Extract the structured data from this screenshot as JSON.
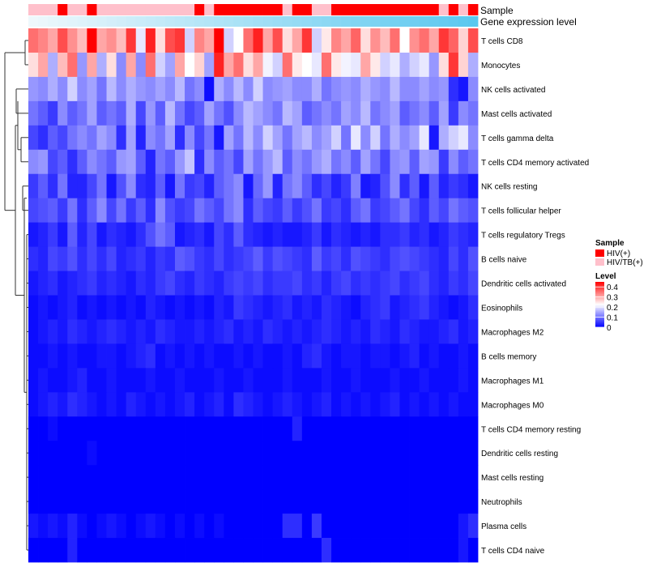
{
  "chart_data": {
    "type": "heatmap",
    "title": "",
    "annotation_tracks": [
      "Sample",
      "Gene expression level"
    ],
    "rows": [
      "T cells CD8",
      "Monocytes",
      "NK cells activated",
      "Mast cells activated",
      "T cells gamma delta",
      "T cells CD4 memory activated",
      "NK cells resting",
      "T cells follicular helper",
      "T cells regulatory  Tregs",
      "B cells naive",
      "Dendritic cells activated",
      "Eosinophils",
      "Macrophages M2",
      "B cells memory",
      "Macrophages M1",
      "Macrophages M0",
      "T cells CD4 memory resting",
      "Dendritic cells resting",
      "Mast cells resting",
      "Neutrophils",
      "Plasma cells",
      "T cells CD4 naive"
    ],
    "column_count": 46,
    "sample_groups": [
      "HIV/TB(+)",
      "HIV/TB(+)",
      "HIV/TB(+)",
      "HIV(+)",
      "HIV/TB(+)",
      "HIV/TB(+)",
      "HIV(+)",
      "HIV/TB(+)",
      "HIV/TB(+)",
      "HIV/TB(+)",
      "HIV/TB(+)",
      "HIV/TB(+)",
      "HIV/TB(+)",
      "HIV/TB(+)",
      "HIV/TB(+)",
      "HIV/TB(+)",
      "HIV/TB(+)",
      "HIV(+)",
      "HIV/TB(+)",
      "HIV(+)",
      "HIV(+)",
      "HIV(+)",
      "HIV(+)",
      "HIV(+)",
      "HIV(+)",
      "HIV(+)",
      "HIV/TB(+)",
      "HIV(+)",
      "HIV(+)",
      "HIV/TB(+)",
      "HIV/TB(+)",
      "HIV(+)",
      "HIV(+)",
      "HIV(+)",
      "HIV(+)",
      "HIV(+)",
      "HIV(+)",
      "HIV(+)",
      "HIV(+)",
      "HIV(+)",
      "HIV(+)",
      "HIV(+)",
      "HIV/TB(+)",
      "HIV(+)",
      "HIV/TB(+)",
      "HIV(+)"
    ],
    "expression_gradient": [
      "#eef8fc",
      "#5bc8ef"
    ],
    "values": [
      [
        0.35,
        0.33,
        0.3,
        0.38,
        0.32,
        0.28,
        0.45,
        0.3,
        0.32,
        0.28,
        0.4,
        0.2,
        0.42,
        0.25,
        0.38,
        0.4,
        0.18,
        0.33,
        0.3,
        0.45,
        0.18,
        0.22,
        0.35,
        0.42,
        0.3,
        0.38,
        0.25,
        0.3,
        0.4,
        0.18,
        0.24,
        0.33,
        0.3,
        0.36,
        0.25,
        0.32,
        0.28,
        0.35,
        0.22,
        0.32,
        0.35,
        0.3,
        0.4,
        0.36,
        0.26,
        0.38
      ],
      [
        0.25,
        0.3,
        0.15,
        0.28,
        0.35,
        0.13,
        0.3,
        0.15,
        0.25,
        0.12,
        0.3,
        0.12,
        0.35,
        0.18,
        0.14,
        0.3,
        0.22,
        0.26,
        0.14,
        0.42,
        0.3,
        0.35,
        0.25,
        0.3,
        0.21,
        0.18,
        0.35,
        0.24,
        0.22,
        0.2,
        0.35,
        0.24,
        0.21,
        0.2,
        0.3,
        0.24,
        0.18,
        0.2,
        0.15,
        0.18,
        0.2,
        0.13,
        0.25,
        0.4,
        0.26,
        0.15
      ],
      [
        0.13,
        0.12,
        0.15,
        0.12,
        0.18,
        0.12,
        0.14,
        0.1,
        0.16,
        0.12,
        0.15,
        0.13,
        0.12,
        0.14,
        0.12,
        0.16,
        0.1,
        0.12,
        0.01,
        0.15,
        0.12,
        0.16,
        0.12,
        0.18,
        0.12,
        0.13,
        0.14,
        0.12,
        0.12,
        0.15,
        0.1,
        0.12,
        0.13,
        0.12,
        0.15,
        0.13,
        0.12,
        0.16,
        0.12,
        0.12,
        0.14,
        0.12,
        0.13,
        0.04,
        0.02,
        0.12
      ],
      [
        0.1,
        0.08,
        0.05,
        0.12,
        0.08,
        0.1,
        0.14,
        0.08,
        0.1,
        0.08,
        0.15,
        0.06,
        0.13,
        0.08,
        0.16,
        0.1,
        0.06,
        0.08,
        0.14,
        0.1,
        0.07,
        0.12,
        0.16,
        0.14,
        0.12,
        0.1,
        0.16,
        0.14,
        0.08,
        0.1,
        0.12,
        0.1,
        0.14,
        0.12,
        0.16,
        0.1,
        0.12,
        0.14,
        0.08,
        0.1,
        0.12,
        0.08,
        0.14,
        0.05,
        0.12,
        0.1
      ],
      [
        0.06,
        0.04,
        0.08,
        0.06,
        0.1,
        0.12,
        0.1,
        0.14,
        0.12,
        0.04,
        0.14,
        0.03,
        0.12,
        0.1,
        0.14,
        0.04,
        0.12,
        0.06,
        0.1,
        0.02,
        0.14,
        0.1,
        0.16,
        0.12,
        0.18,
        0.14,
        0.1,
        0.14,
        0.16,
        0.12,
        0.14,
        0.18,
        0.1,
        0.2,
        0.12,
        0.18,
        0.1,
        0.15,
        0.12,
        0.14,
        0.2,
        0.02,
        0.15,
        0.18,
        0.2,
        0.12
      ],
      [
        0.12,
        0.13,
        0.06,
        0.08,
        0.04,
        0.08,
        0.12,
        0.1,
        0.08,
        0.13,
        0.14,
        0.08,
        0.03,
        0.1,
        0.08,
        0.13,
        0.17,
        0.04,
        0.12,
        0.08,
        0.1,
        0.06,
        0.14,
        0.1,
        0.13,
        0.16,
        0.08,
        0.12,
        0.1,
        0.13,
        0.15,
        0.1,
        0.12,
        0.08,
        0.14,
        0.1,
        0.06,
        0.12,
        0.13,
        0.08,
        0.14,
        0.13,
        0.05,
        0.12,
        0.08,
        0.1
      ],
      [
        0.05,
        0.08,
        0.04,
        0.1,
        0.03,
        0.03,
        0.06,
        0.1,
        0.02,
        0.07,
        0.12,
        0.04,
        0.03,
        0.08,
        0.02,
        0.1,
        0.05,
        0.06,
        0.03,
        0.08,
        0.1,
        0.12,
        0.02,
        0.09,
        0.13,
        0.03,
        0.1,
        0.12,
        0.08,
        0.04,
        0.06,
        0.03,
        0.05,
        0.11,
        0.02,
        0.03,
        0.07,
        0.12,
        0.04,
        0.08,
        0.02,
        0.08,
        0.03,
        0.05,
        0.04,
        0.02
      ],
      [
        0.06,
        0.07,
        0.08,
        0.05,
        0.1,
        0.04,
        0.08,
        0.12,
        0.06,
        0.1,
        0.05,
        0.08,
        0.04,
        0.12,
        0.07,
        0.05,
        0.06,
        0.1,
        0.08,
        0.06,
        0.1,
        0.12,
        0.04,
        0.08,
        0.06,
        0.05,
        0.08,
        0.05,
        0.07,
        0.1,
        0.05,
        0.06,
        0.04,
        0.08,
        0.1,
        0.05,
        0.06,
        0.08,
        0.1,
        0.06,
        0.04,
        0.08,
        0.06,
        0.1,
        0.08,
        0.07
      ],
      [
        0.02,
        0.03,
        0.05,
        0.02,
        0.08,
        0.03,
        0.06,
        0.02,
        0.04,
        0.03,
        0.02,
        0.04,
        0.07,
        0.1,
        0.08,
        0.02,
        0.03,
        0.04,
        0.02,
        0.06,
        0.04,
        0.08,
        0.04,
        0.03,
        0.02,
        0.03,
        0.02,
        0.02,
        0.03,
        0.05,
        0.02,
        0.04,
        0.03,
        0.02,
        0.03,
        0.02,
        0.04,
        0.04,
        0.05,
        0.03,
        0.04,
        0.02,
        0.03,
        0.05,
        0.04,
        0.03
      ],
      [
        0.04,
        0.03,
        0.06,
        0.05,
        0.07,
        0.04,
        0.06,
        0.04,
        0.06,
        0.03,
        0.04,
        0.05,
        0.03,
        0.05,
        0.04,
        0.08,
        0.07,
        0.05,
        0.04,
        0.06,
        0.04,
        0.05,
        0.06,
        0.08,
        0.05,
        0.07,
        0.06,
        0.05,
        0.04,
        0.08,
        0.05,
        0.06,
        0.04,
        0.07,
        0.06,
        0.05,
        0.04,
        0.06,
        0.07,
        0.06,
        0.05,
        0.04,
        0.03,
        0.06,
        0.04,
        0.07
      ],
      [
        0.02,
        0.03,
        0.04,
        0.02,
        0.03,
        0.04,
        0.05,
        0.03,
        0.04,
        0.03,
        0.02,
        0.04,
        0.03,
        0.05,
        0.06,
        0.04,
        0.03,
        0.05,
        0.04,
        0.03,
        0.05,
        0.06,
        0.05,
        0.06,
        0.04,
        0.05,
        0.05,
        0.06,
        0.04,
        0.05,
        0.03,
        0.05,
        0.06,
        0.04,
        0.05,
        0.04,
        0.05,
        0.06,
        0.04,
        0.05,
        0.06,
        0.04,
        0.03,
        0.05,
        0.04,
        0.06
      ],
      [
        0.01,
        0.02,
        0.01,
        0.02,
        0.03,
        0.01,
        0.02,
        0.01,
        0.02,
        0.01,
        0.02,
        0.01,
        0.03,
        0.02,
        0.01,
        0.02,
        0.01,
        0.02,
        0.01,
        0.03,
        0.02,
        0.05,
        0.04,
        0.03,
        0.02,
        0.03,
        0.04,
        0.02,
        0.03,
        0.02,
        0.04,
        0.03,
        0.02,
        0.01,
        0.03,
        0.04,
        0.05,
        0.02,
        0.03,
        0.04,
        0.05,
        0.03,
        0.02,
        0.01,
        0.02,
        0.04
      ],
      [
        0.01,
        0.02,
        0.03,
        0.02,
        0.04,
        0.03,
        0.02,
        0.03,
        0.04,
        0.03,
        0.02,
        0.03,
        0.02,
        0.04,
        0.03,
        0.02,
        0.02,
        0.03,
        0.02,
        0.03,
        0.04,
        0.02,
        0.03,
        0.02,
        0.04,
        0.03,
        0.02,
        0.03,
        0.02,
        0.03,
        0.04,
        0.03,
        0.02,
        0.03,
        0.02,
        0.04,
        0.03,
        0.02,
        0.04,
        0.03,
        0.02,
        0.02,
        0.03,
        0.04,
        0.02,
        0.03
      ],
      [
        0.01,
        0.01,
        0.02,
        0.01,
        0.02,
        0.01,
        0.01,
        0.02,
        0.02,
        0.01,
        0.02,
        0.03,
        0.04,
        0.01,
        0.02,
        0.01,
        0.02,
        0.01,
        0.02,
        0.01,
        0.01,
        0.02,
        0.01,
        0.02,
        0.01,
        0.01,
        0.02,
        0.01,
        0.03,
        0.04,
        0.02,
        0.01,
        0.02,
        0.02,
        0.01,
        0.02,
        0.02,
        0.01,
        0.02,
        0.03,
        0.01,
        0.02,
        0.01,
        0.01,
        0.02,
        0.01
      ],
      [
        0.01,
        0.02,
        0.01,
        0.01,
        0.02,
        0.03,
        0.01,
        0.01,
        0.02,
        0.01,
        0.01,
        0.01,
        0.02,
        0.01,
        0.01,
        0.02,
        0.01,
        0.01,
        0.01,
        0.02,
        0.01,
        0.01,
        0.02,
        0.01,
        0.01,
        0.01,
        0.02,
        0.01,
        0.01,
        0.01,
        0.02,
        0.01,
        0.01,
        0.02,
        0.01,
        0.01,
        0.01,
        0.02,
        0.01,
        0.01,
        0.02,
        0.01,
        0.01,
        0.01,
        0.02,
        0.01
      ],
      [
        0.01,
        0.02,
        0.03,
        0.02,
        0.04,
        0.03,
        0.02,
        0.01,
        0.02,
        0.01,
        0.03,
        0.02,
        0.01,
        0.02,
        0.01,
        0.02,
        0.03,
        0.01,
        0.02,
        0.03,
        0.01,
        0.04,
        0.03,
        0.02,
        0.01,
        0.02,
        0.03,
        0.02,
        0.01,
        0.02,
        0.03,
        0.01,
        0.02,
        0.01,
        0.02,
        0.01,
        0.02,
        0.03,
        0.01,
        0.02,
        0.01,
        0.02,
        0.01,
        0.02,
        0.01,
        0.01
      ],
      [
        0.0,
        0.0,
        0.01,
        0.0,
        0.0,
        0.0,
        0.0,
        0.0,
        0.0,
        0.0,
        0.0,
        0.0,
        0.0,
        0.0,
        0.0,
        0.0,
        0.0,
        0.0,
        0.0,
        0.0,
        0.0,
        0.0,
        0.0,
        0.0,
        0.0,
        0.0,
        0.0,
        0.03,
        0.0,
        0.0,
        0.0,
        0.0,
        0.0,
        0.0,
        0.0,
        0.0,
        0.0,
        0.0,
        0.0,
        0.0,
        0.0,
        0.0,
        0.0,
        0.0,
        0.0,
        0.0
      ],
      [
        0.0,
        0.0,
        0.0,
        0.0,
        0.0,
        0.0,
        0.01,
        0.0,
        0.0,
        0.0,
        0.0,
        0.0,
        0.0,
        0.0,
        0.0,
        0.0,
        0.0,
        0.0,
        0.0,
        0.0,
        0.0,
        0.0,
        0.0,
        0.0,
        0.0,
        0.0,
        0.0,
        0.0,
        0.0,
        0.0,
        0.0,
        0.0,
        0.0,
        0.0,
        0.0,
        0.0,
        0.0,
        0.0,
        0.0,
        0.0,
        0.0,
        0.0,
        0.0,
        0.0,
        0.0,
        0.0
      ],
      [
        0.0,
        0.0,
        0.0,
        0.0,
        0.0,
        0.0,
        0.0,
        0.0,
        0.0,
        0.0,
        0.0,
        0.0,
        0.0,
        0.0,
        0.0,
        0.0,
        0.0,
        0.0,
        0.0,
        0.0,
        0.0,
        0.0,
        0.0,
        0.0,
        0.0,
        0.0,
        0.0,
        0.0,
        0.0,
        0.0,
        0.0,
        0.0,
        0.0,
        0.0,
        0.0,
        0.0,
        0.0,
        0.0,
        0.0,
        0.0,
        0.0,
        0.0,
        0.0,
        0.0,
        0.0,
        0.0
      ],
      [
        0.0,
        0.0,
        0.0,
        0.0,
        0.0,
        0.0,
        0.0,
        0.0,
        0.0,
        0.0,
        0.0,
        0.0,
        0.0,
        0.0,
        0.0,
        0.0,
        0.0,
        0.0,
        0.0,
        0.0,
        0.0,
        0.0,
        0.0,
        0.0,
        0.0,
        0.0,
        0.0,
        0.0,
        0.0,
        0.0,
        0.0,
        0.0,
        0.0,
        0.0,
        0.0,
        0.0,
        0.0,
        0.0,
        0.0,
        0.0,
        0.0,
        0.0,
        0.0,
        0.0,
        0.0,
        0.0
      ],
      [
        0.02,
        0.01,
        0.02,
        0.01,
        0.03,
        0.01,
        0.0,
        0.01,
        0.02,
        0.01,
        0.0,
        0.01,
        0.02,
        0.01,
        0.0,
        0.01,
        0.0,
        0.01,
        0.0,
        0.01,
        0.0,
        0.0,
        0.0,
        0.0,
        0.0,
        0.0,
        0.04,
        0.04,
        0.0,
        0.05,
        0.0,
        0.0,
        0.0,
        0.0,
        0.0,
        0.0,
        0.0,
        0.0,
        0.0,
        0.0,
        0.0,
        0.0,
        0.0,
        0.0,
        0.02,
        0.04
      ],
      [
        0.0,
        0.0,
        0.0,
        0.0,
        0.03,
        0.0,
        0.0,
        0.0,
        0.0,
        0.0,
        0.0,
        0.0,
        0.0,
        0.0,
        0.0,
        0.0,
        0.0,
        0.0,
        0.0,
        0.0,
        0.0,
        0.0,
        0.0,
        0.0,
        0.0,
        0.0,
        0.0,
        0.0,
        0.0,
        0.0,
        0.04,
        0.0,
        0.0,
        0.0,
        0.0,
        0.0,
        0.0,
        0.0,
        0.0,
        0.0,
        0.0,
        0.0,
        0.0,
        0.0,
        0.02,
        0.0
      ]
    ],
    "color_scale": {
      "low": "#0000ff",
      "mid": "#ffffff",
      "high": "#ff0000",
      "range": [
        0,
        0.45
      ],
      "midpoint": 0.22
    },
    "legend": {
      "sample_title": "Sample",
      "sample_entries": [
        {
          "label": "HIV(+)",
          "color": "#ff0000"
        },
        {
          "label": "HIV/TB(+)",
          "color": "#ffc0cb"
        }
      ],
      "level_title": "Level",
      "level_ticks": [
        "0.4",
        "0.3",
        "0.2",
        "0.1",
        "0"
      ],
      "placement": "right"
    }
  }
}
